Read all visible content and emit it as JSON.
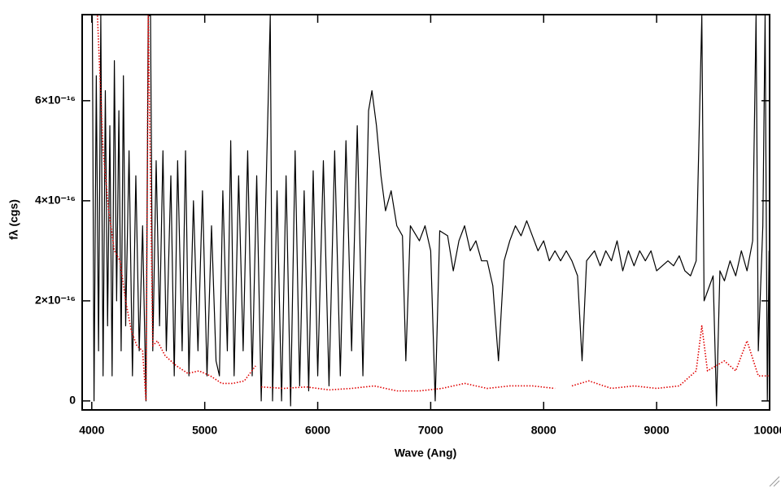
{
  "chart_data": {
    "type": "line",
    "x_label": "Wave (Ang)",
    "y_label": "fλ (cgs)",
    "xlim": [
      3915,
      10000
    ],
    "ylim": [
      -1.8e-17,
      7.72e-16
    ],
    "xticks": [
      4000,
      5000,
      6000,
      7000,
      8000,
      9000,
      10000
    ],
    "yticks": [
      0,
      {
        "value": 2e-16,
        "label": "2×10⁻¹⁶"
      },
      {
        "value": 4e-16,
        "label": "4×10⁻¹⁶"
      },
      {
        "value": 6e-16,
        "label": "6×10⁻¹⁶"
      }
    ],
    "series": [
      {
        "color": "#000000",
        "style": "solid",
        "x": [
          4005,
          4020,
          4040,
          4060,
          4080,
          4100,
          4120,
          4140,
          4160,
          4180,
          4200,
          4220,
          4240,
          4260,
          4280,
          4300,
          4330,
          4360,
          4390,
          4420,
          4450,
          4480,
          4500,
          4520,
          4540,
          4570,
          4600,
          4630,
          4660,
          4700,
          4730,
          4760,
          4800,
          4830,
          4860,
          4900,
          4940,
          4980,
          5020,
          5060,
          5100,
          5130,
          5160,
          5200,
          5230,
          5260,
          5300,
          5340,
          5380,
          5420,
          5460,
          5500,
          5540,
          5580,
          5600,
          5640,
          5680,
          5720,
          5760,
          5800,
          5840,
          5880,
          5920,
          5960,
          6000,
          6050,
          6100,
          6150,
          6200,
          6250,
          6300,
          6350,
          6400,
          6450,
          6480,
          6520,
          6560,
          6600,
          6650,
          6700,
          6750,
          6780,
          6820,
          6900,
          6950,
          7000,
          7040,
          7080,
          7150,
          7200,
          7250,
          7300,
          7350,
          7400,
          7450,
          7500,
          7550,
          7600,
          7650,
          7700,
          7750,
          7800,
          7850,
          7900,
          7950,
          8000,
          8050,
          8100,
          8150,
          8200,
          8250,
          8300,
          8340,
          8380,
          8450,
          8500,
          8550,
          8600,
          8650,
          8700,
          8750,
          8800,
          8850,
          8900,
          8950,
          9000,
          9050,
          9100,
          9150,
          9200,
          9250,
          9300,
          9350,
          9400,
          9420,
          9500,
          9530,
          9560,
          9600,
          9650,
          9700,
          9750,
          9800,
          9850,
          9880,
          9900,
          9940,
          9960,
          9980,
          9995
        ],
        "values": [
          7.7e-16,
          0,
          6.5e-16,
          1e-16,
          7.7e-16,
          5e-17,
          6.2e-16,
          1.5e-16,
          5.5e-16,
          5e-17,
          6.8e-16,
          2e-16,
          5.8e-16,
          1e-16,
          6.5e-16,
          1.5e-16,
          5e-16,
          5e-17,
          4.5e-16,
          1e-16,
          3.5e-16,
          0,
          7.7e-16,
          7.7e-16,
          1e-16,
          4.8e-16,
          1.5e-16,
          5e-16,
          1e-16,
          4.5e-16,
          5e-17,
          4.8e-16,
          1e-16,
          5e-16,
          5e-17,
          4e-16,
          1e-16,
          4.2e-16,
          5e-17,
          3.5e-16,
          8e-17,
          5e-17,
          4.2e-16,
          1e-16,
          5.2e-16,
          5e-17,
          4.5e-16,
          1e-16,
          5e-16,
          5e-17,
          4.5e-16,
          0,
          4e-16,
          7.7e-16,
          0,
          4.2e-16,
          0,
          4.5e-16,
          -1e-17,
          5e-16,
          3e-17,
          4.2e-16,
          2e-17,
          4.6e-16,
          5e-17,
          4.8e-16,
          3e-17,
          5e-16,
          5e-17,
          5.2e-16,
          1e-16,
          5.5e-16,
          5e-17,
          5.8e-16,
          6.2e-16,
          5.5e-16,
          4.5e-16,
          3.8e-16,
          4.2e-16,
          3.5e-16,
          3.3e-16,
          8e-17,
          3.5e-16,
          3.2e-16,
          3.5e-16,
          3e-16,
          0,
          3.4e-16,
          3.3e-16,
          2.6e-16,
          3.2e-16,
          3.5e-16,
          3e-16,
          3.2e-16,
          2.8e-16,
          2.8e-16,
          2.3e-16,
          8e-17,
          2.8e-16,
          3.2e-16,
          3.5e-16,
          3.3e-16,
          3.6e-16,
          3.3e-16,
          3e-16,
          3.2e-16,
          2.8e-16,
          3e-16,
          2.8e-16,
          3e-16,
          2.8e-16,
          2.5e-16,
          8e-17,
          2.8e-16,
          3e-16,
          2.7e-16,
          3e-16,
          2.8e-16,
          3.2e-16,
          2.6e-16,
          3e-16,
          2.7e-16,
          3e-16,
          2.8e-16,
          3e-16,
          2.6e-16,
          2.7e-16,
          2.8e-16,
          2.7e-16,
          2.9e-16,
          2.6e-16,
          2.5e-16,
          2.8e-16,
          7.7e-16,
          2e-16,
          2.5e-16,
          -1e-17,
          2.6e-16,
          2.4e-16,
          2.8e-16,
          2.5e-16,
          3e-16,
          2.6e-16,
          3.2e-16,
          7.7e-16,
          1e-16,
          3.5e-16,
          7.7e-16,
          0,
          3e-16
        ]
      },
      {
        "color": "#e00000",
        "style": "dotted",
        "x": [
          4050,
          4100,
          4150,
          4200,
          4250,
          4300,
          4350,
          4400,
          4450,
          4480,
          4500,
          4540,
          4580,
          4650,
          4750,
          4850,
          4950,
          5050,
          5150,
          5250,
          5350,
          5450,
          5480,
          5500,
          5700,
          5900,
          6100,
          6300,
          6500,
          6700,
          6900,
          7100,
          7300,
          7500,
          7700,
          7900,
          8100,
          8200,
          8250,
          8400,
          8600,
          8800,
          9000,
          9200,
          9350,
          9400,
          9450,
          9600,
          9700,
          9800,
          9900,
          9990
        ],
        "values": [
          7.7e-16,
          5e-16,
          3.8e-16,
          3e-16,
          2.8e-16,
          2e-16,
          1.4e-16,
          1.1e-16,
          1e-16,
          0,
          7.7e-16,
          1.1e-16,
          1.2e-16,
          9e-17,
          7e-17,
          5.5e-17,
          6e-17,
          5e-17,
          3.5e-17,
          3.5e-17,
          4e-17,
          7e-17,
          null,
          2.8e-17,
          2.5e-17,
          2.8e-17,
          2.2e-17,
          2.5e-17,
          3e-17,
          2e-17,
          2e-17,
          2.5e-17,
          3.5e-17,
          2.5e-17,
          3e-17,
          3e-17,
          2.5e-17,
          null,
          3e-17,
          4e-17,
          2.5e-17,
          3e-17,
          2.5e-17,
          3e-17,
          6e-17,
          1.5e-16,
          6e-17,
          8e-17,
          6e-17,
          1.2e-16,
          5e-17,
          5e-17
        ]
      }
    ]
  }
}
